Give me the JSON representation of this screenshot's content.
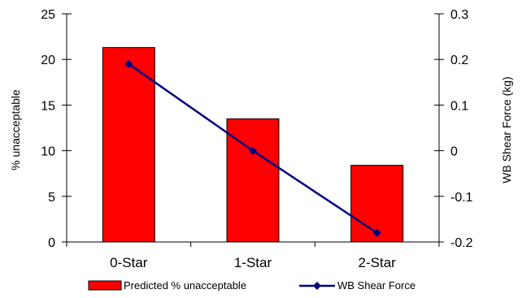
{
  "chart_data": {
    "type": "bar",
    "categories": [
      "0-Star",
      "1-Star",
      "2-Star"
    ],
    "series": [
      {
        "name": "Predicted % unacceptable",
        "type": "bar",
        "axis": "left",
        "color": "#ff0000",
        "values": [
          21.3,
          13.5,
          8.4
        ]
      },
      {
        "name": "WB Shear Force",
        "type": "line",
        "axis": "right",
        "color": "#000080",
        "marker": "diamond",
        "values": [
          0.19,
          0.0,
          -0.18
        ]
      }
    ],
    "ylabel": "% unacceptable",
    "y2label": "WB Shear Force (kg)",
    "ylim": [
      0,
      25
    ],
    "yticks": [
      0,
      5,
      10,
      15,
      20,
      25
    ],
    "y2lim": [
      -0.2,
      0.3
    ],
    "y2ticks": [
      -0.2,
      -0.1,
      0,
      0.1,
      0.2,
      0.3
    ],
    "grid": false,
    "legend_position": "bottom"
  }
}
